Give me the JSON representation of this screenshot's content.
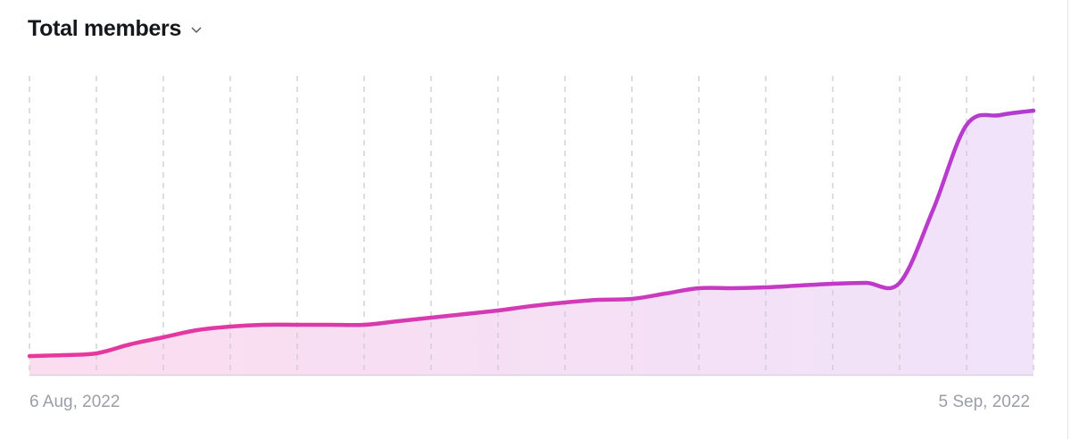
{
  "header": {
    "title": "Total members",
    "dropdown_icon": "chevron-down-icon"
  },
  "chart_data": {
    "type": "area",
    "title": "Total members",
    "xlabel": "",
    "ylabel": "",
    "x_tick_labels": [
      "6 Aug, 2022",
      "5 Sep, 2022"
    ],
    "x": [
      "2022-08-06",
      "2022-08-07",
      "2022-08-08",
      "2022-08-09",
      "2022-08-10",
      "2022-08-11",
      "2022-08-12",
      "2022-08-13",
      "2022-08-14",
      "2022-08-15",
      "2022-08-16",
      "2022-08-17",
      "2022-08-18",
      "2022-08-19",
      "2022-08-20",
      "2022-08-21",
      "2022-08-22",
      "2022-08-23",
      "2022-08-24",
      "2022-08-25",
      "2022-08-26",
      "2022-08-27",
      "2022-08-28",
      "2022-08-29",
      "2022-08-30",
      "2022-08-31",
      "2022-09-01",
      "2022-09-02",
      "2022-09-03",
      "2022-09-04",
      "2022-09-05"
    ],
    "values": [
      21,
      22,
      24,
      34,
      42,
      50,
      54,
      56,
      56,
      56,
      56,
      60,
      64,
      68,
      72,
      77,
      81,
      84,
      85,
      91,
      97,
      97,
      98,
      100,
      102,
      103,
      103,
      185,
      280,
      291,
      296
    ],
    "ylim": [
      0,
      335
    ],
    "y_axis_shown": false,
    "grid": "vertical dashed, every 2 days",
    "colors": {
      "line_start": "#e8389a",
      "line_end": "#b23bd2",
      "fill_start": "#fcdcef",
      "fill_end": "#f0e3fa",
      "grid": "#c9c9cf",
      "baseline": "#d8d4e0"
    }
  }
}
